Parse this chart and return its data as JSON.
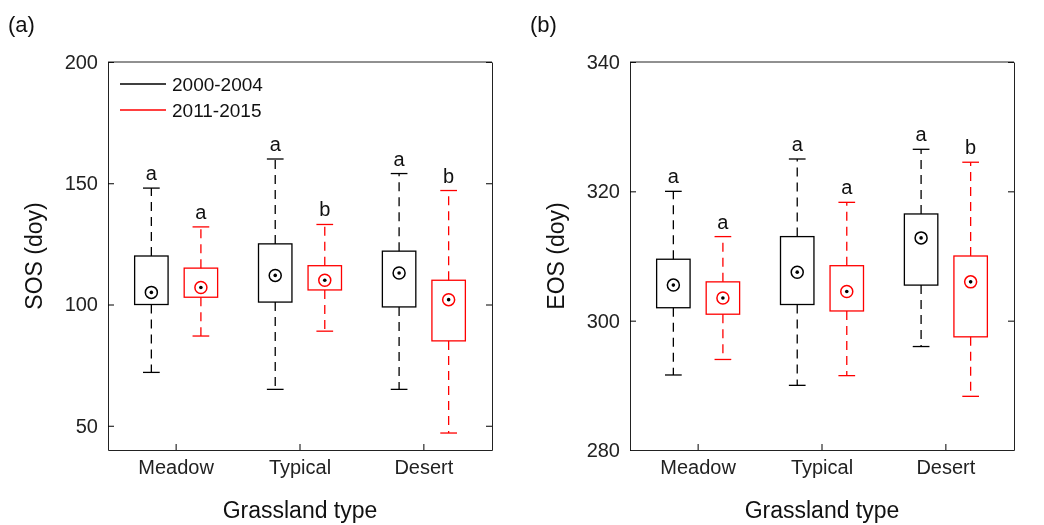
{
  "chart_data": [
    {
      "type": "box",
      "title": "(a)",
      "xlabel": "Grassland type",
      "ylabel": "SOS (doy)",
      "categories": [
        "Meadow",
        "Typical",
        "Desert"
      ],
      "ylim": [
        40,
        200
      ],
      "yticks": [
        50,
        100,
        150,
        200
      ],
      "legend": "top left",
      "marker": "circle",
      "line_style": "dashed",
      "grid": false,
      "series": [
        {
          "name": "2000-2004",
          "color": "#000000",
          "boxes": [
            {
              "low": 72,
              "q1": 100,
              "median": 105,
              "q3": 120,
              "high": 148
            },
            {
              "low": 65,
              "q1": 101,
              "median": 112,
              "q3": 125,
              "high": 160
            },
            {
              "low": 65,
              "q1": 99,
              "median": 113,
              "q3": 122,
              "high": 154
            }
          ]
        },
        {
          "name": "2011-2015",
          "color": "#ff0000",
          "boxes": [
            {
              "low": 87,
              "q1": 103,
              "median": 107,
              "q3": 115,
              "high": 132
            },
            {
              "low": 89,
              "q1": 106,
              "median": 110,
              "q3": 116,
              "high": 133
            },
            {
              "low": 47,
              "q1": 85,
              "median": 102,
              "q3": 110,
              "high": 147
            }
          ]
        }
      ],
      "annotations": [
        "a",
        "a",
        "a",
        "b",
        "a",
        "b"
      ]
    },
    {
      "type": "box",
      "title": "(b)",
      "xlabel": "Grassland type",
      "ylabel": "EOS (doy)",
      "categories": [
        "Meadow",
        "Typical",
        "Desert"
      ],
      "ylim": [
        280,
        340
      ],
      "yticks": [
        280,
        300,
        320,
        340
      ],
      "marker": "circle",
      "line_style": "dashed",
      "grid": false,
      "series": [
        {
          "color": "#000000",
          "boxes": [
            {
              "low": 291.6,
              "q1": 302,
              "median": 305.5,
              "q3": 309.5,
              "high": 320
            },
            {
              "low": 290,
              "q1": 302.5,
              "median": 307.5,
              "q3": 313,
              "high": 325
            },
            {
              "low": 296,
              "q1": 305.5,
              "median": 312.8,
              "q3": 316.5,
              "high": 326.5
            }
          ]
        },
        {
          "color": "#ff0000",
          "boxes": [
            {
              "low": 294,
              "q1": 301,
              "median": 303.5,
              "q3": 306,
              "high": 313
            },
            {
              "low": 291.5,
              "q1": 301.5,
              "median": 304.5,
              "q3": 308.5,
              "high": 318.3
            },
            {
              "low": 288.3,
              "q1": 297.5,
              "median": 306,
              "q3": 310,
              "high": 324.5
            }
          ]
        }
      ],
      "annotations": [
        "a",
        "a",
        "a",
        "a",
        "a",
        "b"
      ]
    }
  ]
}
